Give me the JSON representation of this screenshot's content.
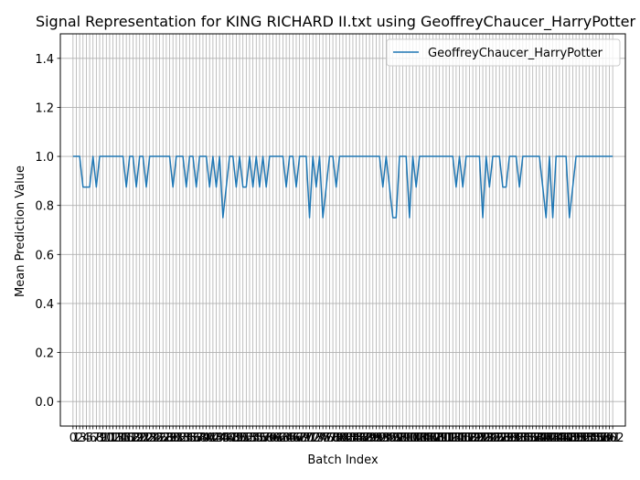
{
  "chart_data": {
    "type": "line",
    "title": "Signal Representation for KING RICHARD II.txt using GeoffreyChaucer_HarryPotter",
    "xlabel": "Batch Index",
    "ylabel": "Mean Prediction Value",
    "xlim": [
      -3.8,
      165.8
    ],
    "ylim": [
      -0.1,
      1.5
    ],
    "yticks": [
      0.0,
      0.2,
      0.4,
      0.6,
      0.8,
      1.0,
      1.2,
      1.4
    ],
    "ytick_labels": [
      "0.0",
      "0.2",
      "0.4",
      "0.6",
      "0.8",
      "1.0",
      "1.2",
      "1.4"
    ],
    "x_tick_count": 163,
    "grid": true,
    "legend": "top-right",
    "colors": {
      "line": "#1f77b4",
      "grid": "#b0b0b0"
    },
    "series": [
      {
        "name": "GeoffreyChaucer_HarryPotter",
        "values": [
          1,
          1,
          1,
          0.875,
          0.875,
          0.875,
          1,
          0.875,
          1,
          1,
          1,
          1,
          1,
          1,
          1,
          1,
          0.875,
          1,
          1,
          0.875,
          1,
          1,
          0.875,
          1,
          1,
          1,
          1,
          1,
          1,
          1,
          0.875,
          1,
          1,
          1,
          0.875,
          1,
          1,
          0.875,
          1,
          1,
          1,
          0.875,
          1,
          0.875,
          1,
          0.75,
          0.875,
          1,
          1,
          0.875,
          1,
          0.875,
          0.875,
          1,
          0.875,
          1,
          0.875,
          1,
          0.875,
          1,
          1,
          1,
          1,
          1,
          0.875,
          1,
          1,
          0.875,
          1,
          1,
          1,
          0.75,
          1,
          0.875,
          1,
          0.75,
          0.875,
          1,
          1,
          0.875,
          1,
          1,
          1,
          1,
          1,
          1,
          1,
          1,
          1,
          1,
          1,
          1,
          1,
          0.875,
          1,
          0.875,
          0.75,
          0.75,
          1,
          1,
          1,
          0.75,
          1,
          0.875,
          1,
          1,
          1,
          1,
          1,
          1,
          1,
          1,
          1,
          1,
          1,
          0.875,
          1,
          0.875,
          1,
          1,
          1,
          1,
          1,
          0.75,
          1,
          0.875,
          1,
          1,
          1,
          0.875,
          0.875,
          1,
          1,
          1,
          0.875,
          1,
          1,
          1,
          1,
          1,
          1,
          0.875,
          0.75,
          1,
          0.75,
          1,
          1,
          1,
          1,
          0.75,
          0.875,
          1,
          1,
          1,
          1,
          1,
          1,
          1,
          1,
          1,
          1,
          1,
          1
        ]
      }
    ]
  }
}
